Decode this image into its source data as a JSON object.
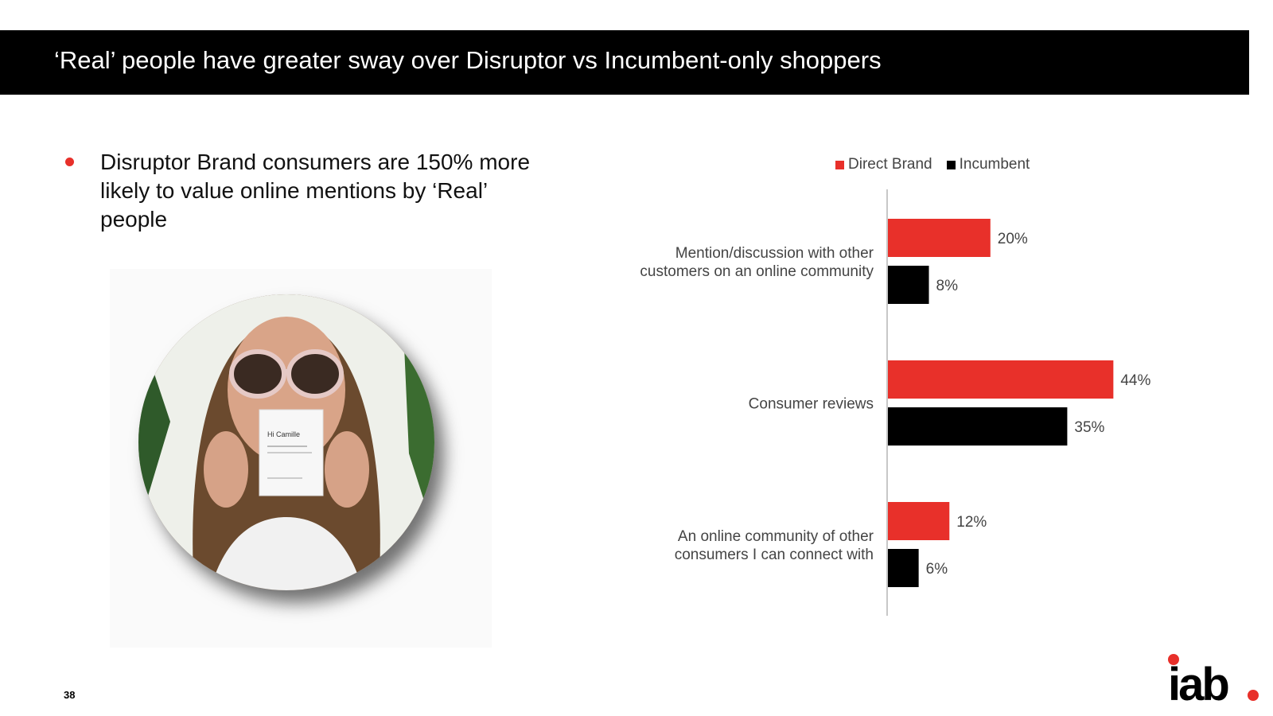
{
  "header": {
    "title": "‘Real’ people have greater sway over Disruptor vs Incumbent-only shoppers"
  },
  "bullet": {
    "text": "Disruptor Brand consumers are 150% more likely to value online mentions by ‘Real’ people"
  },
  "photo": {
    "card_text": "Hi Camille"
  },
  "colors": {
    "accent": "#e8302a",
    "incumbent": "#000000",
    "band": "#000000"
  },
  "chart_data": {
    "type": "bar",
    "orientation": "horizontal",
    "categories": [
      "Mention/discussion with other customers on an online community",
      "Consumer reviews",
      "An online community of other consumers I can connect with"
    ],
    "category_lines": [
      [
        "Mention/discussion with other",
        "customers on an online community"
      ],
      [
        "Consumer reviews"
      ],
      [
        "An online community of other",
        "consumers I can connect with"
      ]
    ],
    "series": [
      {
        "name": "Direct Brand",
        "values": [
          20,
          44,
          12
        ],
        "color": "#e8302a"
      },
      {
        "name": "Incumbent",
        "values": [
          8,
          35,
          6
        ],
        "color": "#000000"
      }
    ],
    "value_suffix": "%",
    "xlim": [
      0,
      50
    ],
    "legend_position": "top",
    "grid": false
  },
  "footer": {
    "page_number": "38",
    "logo_text": "iab"
  }
}
